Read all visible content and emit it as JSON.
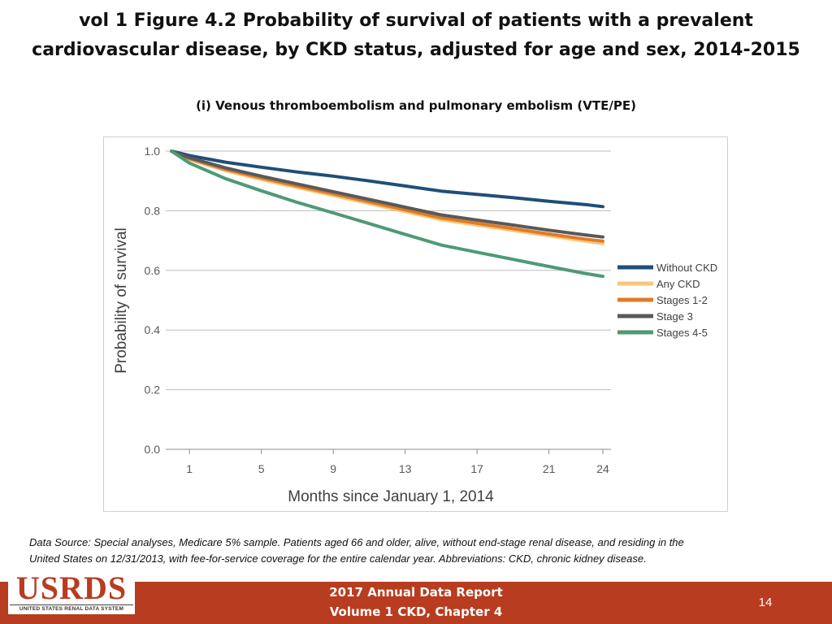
{
  "title_line1": "vol 1 Figure 4.2 Probability of survival of patients with a prevalent",
  "title_line2": "cardiovascular disease, by CKD status, adjusted for age and sex, 2014-2015",
  "subtitle": "(i) Venous thromboembolism and pulmonary embolism (VTE/PE)",
  "chart_data": {
    "type": "line",
    "title": "(i) Venous thromboembolism and pulmonary embolism (VTE/PE)",
    "xlabel": "Months since January 1, 2014",
    "ylabel": "Probability of survival",
    "xlim": [
      0,
      24
    ],
    "ylim": [
      0.0,
      1.0
    ],
    "xticks": [
      1,
      5,
      9,
      13,
      17,
      21,
      24
    ],
    "yticks": [
      "0.0",
      "0.2",
      "0.4",
      "0.6",
      "0.8",
      "1.0"
    ],
    "grid": true,
    "legend_position": "right",
    "x": [
      0,
      1,
      3,
      5,
      7,
      9,
      11,
      13,
      15,
      17,
      19,
      21,
      23,
      24
    ],
    "series": [
      {
        "name": "Without CKD",
        "color": "#1f4e79",
        "values": [
          1.0,
          0.985,
          0.963,
          0.946,
          0.93,
          0.916,
          0.9,
          0.883,
          0.866,
          0.855,
          0.844,
          0.832,
          0.821,
          0.814
        ]
      },
      {
        "name": "Any CKD",
        "color": "#f6c77a",
        "values": [
          1.0,
          0.972,
          0.935,
          0.905,
          0.878,
          0.851,
          0.824,
          0.797,
          0.77,
          0.752,
          0.734,
          0.716,
          0.698,
          0.69
        ]
      },
      {
        "name": "Stages 1-2",
        "color": "#e07b27",
        "values": [
          1.0,
          0.975,
          0.939,
          0.91,
          0.883,
          0.857,
          0.83,
          0.803,
          0.776,
          0.758,
          0.74,
          0.722,
          0.705,
          0.698
        ]
      },
      {
        "name": "Stage 3",
        "color": "#595959",
        "values": [
          1.0,
          0.978,
          0.944,
          0.916,
          0.89,
          0.864,
          0.838,
          0.812,
          0.786,
          0.769,
          0.752,
          0.735,
          0.719,
          0.712
        ]
      },
      {
        "name": "Stages 4-5",
        "color": "#4e9a74",
        "values": [
          1.0,
          0.96,
          0.908,
          0.867,
          0.828,
          0.793,
          0.757,
          0.721,
          0.685,
          0.661,
          0.637,
          0.613,
          0.59,
          0.58
        ]
      }
    ]
  },
  "footnote_line1": "Data Source: Special analyses, Medicare 5% sample. Patients aged 66 and older, alive, without end-stage renal disease, and residing in the",
  "footnote_line2": "United States on 12/31/2013, with fee-for-service coverage for the entire calendar year. Abbreviations: CKD, chronic kidney disease.",
  "footer": {
    "logo_text": "USRDS",
    "logo_subtext": "UNITED STATES RENAL DATA SYSTEM",
    "report_line1": "2017 Annual Data Report",
    "report_line2": "Volume 1 CKD, Chapter 4",
    "page_number": "14",
    "bar_color": "#b83c1f"
  }
}
